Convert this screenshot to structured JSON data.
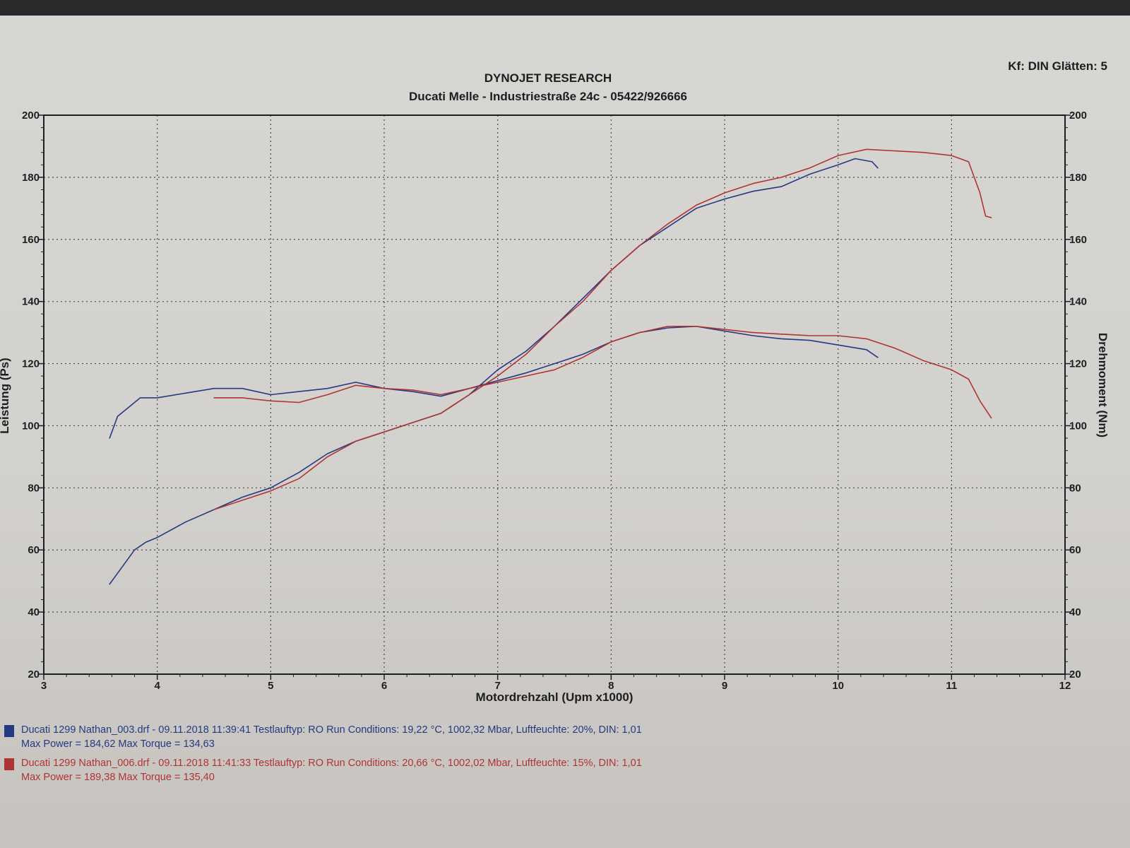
{
  "header": {
    "title": "DYNOJET RESEARCH",
    "subtitle": "Ducati Melle - Industriestraße 24c - 05422/926666",
    "corner_info": "Kf: DIN  Glätten: 5"
  },
  "legend": [
    {
      "color": "#243a82",
      "line1": "Ducati 1299 Nathan_003.drf - 09.11.2018 11:39:41  Testlauftyp: RO  Run Conditions: 19,22 °C, 1002,32 Mbar,  Luftfeuchte: 20%, DIN: 1,01",
      "line2": "Max Power = 184,62  Max Torque = 134,63"
    },
    {
      "color": "#b03434",
      "line1": "Ducati 1299 Nathan_006.drf - 09.11.2018 11:41:33  Testlauftyp: RO  Run Conditions: 20,66 °C, 1002,02 Mbar,  Luftfeuchte: 15%, DIN: 1,01",
      "line2": "Max Power = 189,38  Max Torque = 135,40"
    }
  ],
  "chart_data": {
    "type": "line",
    "title": "DYNOJET RESEARCH",
    "subtitle": "Ducati Melle - Industriestraße 24c - 05422/926666",
    "xlabel": "Motordrehzahl (Upm x1000)",
    "ylabel_left": "Leistung (Ps)",
    "ylabel_right": "Drehmoment (Nm)",
    "xlim": [
      3,
      12
    ],
    "ylim_left": [
      20,
      200
    ],
    "ylim_right": [
      20,
      200
    ],
    "x_ticks": [
      "3",
      "4",
      "5",
      "6",
      "7",
      "8",
      "9",
      "10",
      "11",
      "12"
    ],
    "y_left_ticks": [
      "20",
      "40",
      "60",
      "80",
      "100",
      "120",
      "140",
      "160",
      "180",
      "200"
    ],
    "y_right_ticks": [
      "20",
      "40",
      "60",
      "80",
      "100",
      "120",
      "140",
      "160",
      "180",
      "200"
    ],
    "grid": true,
    "series": [
      {
        "name": "Ducati 1299 Nathan_003.drf",
        "quantity": "power",
        "axis": "left",
        "color": "#243a82",
        "points": [
          [
            3.58,
            49
          ],
          [
            3.7,
            55
          ],
          [
            3.8,
            60
          ],
          [
            3.9,
            62.5
          ],
          [
            4.0,
            64
          ],
          [
            4.25,
            69
          ],
          [
            4.5,
            73
          ],
          [
            4.75,
            77
          ],
          [
            5.0,
            80
          ],
          [
            5.25,
            85
          ],
          [
            5.5,
            91
          ],
          [
            5.75,
            95
          ],
          [
            6.0,
            98
          ],
          [
            6.25,
            101
          ],
          [
            6.5,
            104
          ],
          [
            6.75,
            110
          ],
          [
            7.0,
            118
          ],
          [
            7.25,
            124
          ],
          [
            7.5,
            132
          ],
          [
            7.75,
            141
          ],
          [
            8.0,
            150
          ],
          [
            8.25,
            158
          ],
          [
            8.5,
            164
          ],
          [
            8.75,
            170
          ],
          [
            9.0,
            173
          ],
          [
            9.25,
            175.5
          ],
          [
            9.5,
            177
          ],
          [
            9.75,
            181
          ],
          [
            10.0,
            184
          ],
          [
            10.15,
            186
          ],
          [
            10.3,
            185
          ],
          [
            10.35,
            183
          ]
        ]
      },
      {
        "name": "Ducati 1299 Nathan_003.drf",
        "quantity": "torque",
        "axis": "right",
        "color": "#243a82",
        "points": [
          [
            3.58,
            96
          ],
          [
            3.65,
            103
          ],
          [
            3.75,
            106
          ],
          [
            3.85,
            109
          ],
          [
            4.0,
            109
          ],
          [
            4.25,
            110.5
          ],
          [
            4.5,
            112
          ],
          [
            4.75,
            112
          ],
          [
            5.0,
            110
          ],
          [
            5.25,
            111
          ],
          [
            5.5,
            112
          ],
          [
            5.75,
            114
          ],
          [
            6.0,
            112
          ],
          [
            6.25,
            111
          ],
          [
            6.5,
            109.5
          ],
          [
            6.75,
            112
          ],
          [
            7.0,
            114.5
          ],
          [
            7.25,
            117
          ],
          [
            7.5,
            120
          ],
          [
            7.75,
            123
          ],
          [
            8.0,
            127
          ],
          [
            8.25,
            130
          ],
          [
            8.5,
            131.5
          ],
          [
            8.75,
            132
          ],
          [
            9.0,
            130.5
          ],
          [
            9.25,
            129
          ],
          [
            9.5,
            128
          ],
          [
            9.75,
            127.5
          ],
          [
            10.0,
            126
          ],
          [
            10.25,
            124.5
          ],
          [
            10.35,
            122
          ]
        ]
      },
      {
        "name": "Ducati 1299 Nathan_006.drf",
        "quantity": "power",
        "axis": "left",
        "color": "#b03434",
        "points": [
          [
            4.5,
            73
          ],
          [
            4.75,
            76
          ],
          [
            5.0,
            79
          ],
          [
            5.25,
            83
          ],
          [
            5.5,
            90
          ],
          [
            5.75,
            95
          ],
          [
            6.0,
            98
          ],
          [
            6.25,
            101
          ],
          [
            6.5,
            104
          ],
          [
            6.75,
            110
          ],
          [
            7.0,
            116
          ],
          [
            7.25,
            123
          ],
          [
            7.5,
            132
          ],
          [
            7.75,
            140
          ],
          [
            8.0,
            150
          ],
          [
            8.25,
            158
          ],
          [
            8.5,
            165
          ],
          [
            8.75,
            171
          ],
          [
            9.0,
            175
          ],
          [
            9.25,
            178
          ],
          [
            9.5,
            180
          ],
          [
            9.75,
            183
          ],
          [
            10.0,
            187
          ],
          [
            10.25,
            189
          ],
          [
            10.5,
            188.5
          ],
          [
            10.75,
            188
          ],
          [
            11.0,
            187
          ],
          [
            11.15,
            185
          ],
          [
            11.25,
            175
          ],
          [
            11.3,
            167.5
          ],
          [
            11.35,
            167
          ]
        ]
      },
      {
        "name": "Ducati 1299 Nathan_006.drf",
        "quantity": "torque",
        "axis": "right",
        "color": "#b03434",
        "points": [
          [
            4.5,
            109
          ],
          [
            4.75,
            109
          ],
          [
            5.0,
            108
          ],
          [
            5.25,
            107.5
          ],
          [
            5.5,
            110
          ],
          [
            5.75,
            113
          ],
          [
            6.0,
            112
          ],
          [
            6.25,
            111.5
          ],
          [
            6.5,
            110
          ],
          [
            6.75,
            112
          ],
          [
            7.0,
            114
          ],
          [
            7.25,
            116
          ],
          [
            7.5,
            118
          ],
          [
            7.75,
            122
          ],
          [
            8.0,
            127
          ],
          [
            8.25,
            130
          ],
          [
            8.5,
            132
          ],
          [
            8.75,
            132
          ],
          [
            9.0,
            131
          ],
          [
            9.25,
            130
          ],
          [
            9.5,
            129.5
          ],
          [
            9.75,
            129
          ],
          [
            10.0,
            129
          ],
          [
            10.25,
            128
          ],
          [
            10.5,
            125
          ],
          [
            10.75,
            121
          ],
          [
            11.0,
            118
          ],
          [
            11.15,
            115
          ],
          [
            11.25,
            108
          ],
          [
            11.35,
            102.5
          ]
        ]
      }
    ]
  }
}
